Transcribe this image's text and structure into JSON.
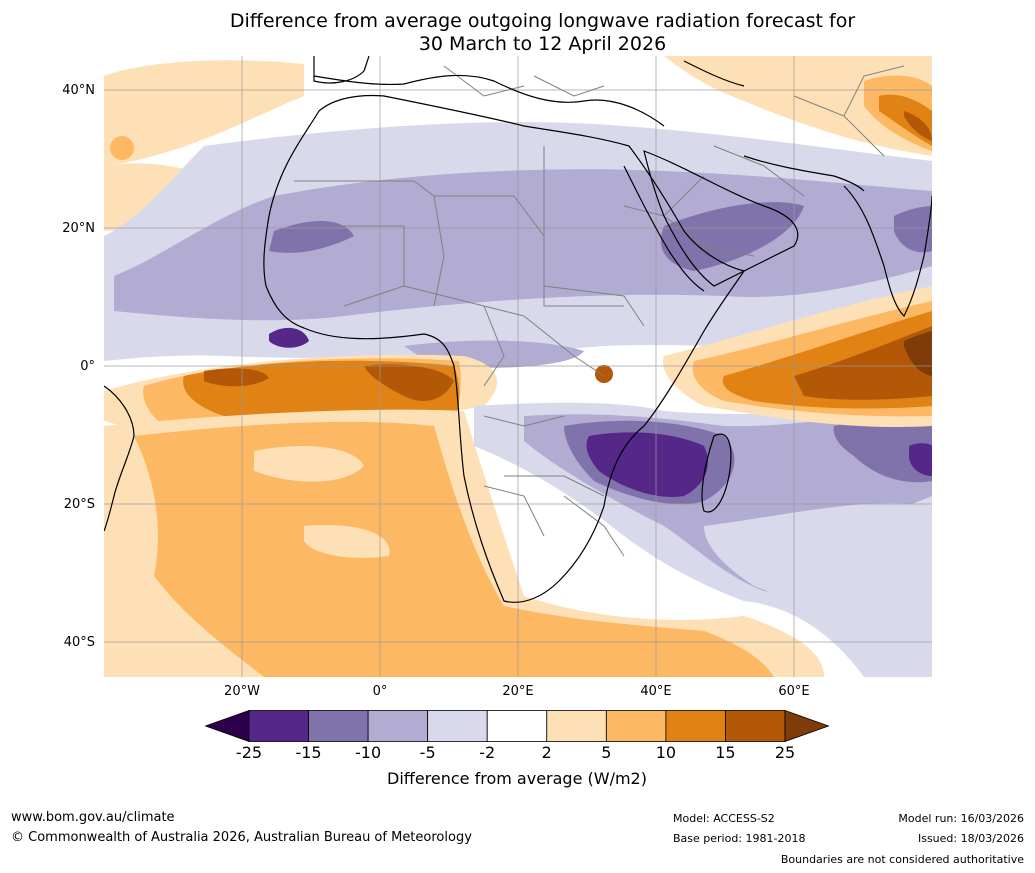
{
  "title": {
    "line1": "Difference from average outgoing longwave radiation forecast for",
    "line2": "30 March to 12 April 2026"
  },
  "map": {
    "lat_labels": [
      "40°N",
      "20°N",
      "0°",
      "20°S",
      "40°S"
    ],
    "lon_labels": [
      "20°W",
      "0°",
      "20°E",
      "40°E",
      "60°E"
    ],
    "colors": {
      "very_strong_negative": "#3a0f5c",
      "strong_negative": "#542788",
      "moderate_negative": "#8073ac",
      "weak_negative": "#b2abd2",
      "slight_negative": "#d8daeb",
      "neutral": "#ffffff",
      "slight_positive": "#fee0b6",
      "weak_positive": "#fdb863",
      "moderate_positive": "#e08214",
      "strong_positive": "#b35806",
      "very_strong_positive": "#7f3b08"
    }
  },
  "colorbar": {
    "title": "Difference from average (W/m2)",
    "ticks": [
      "-25",
      "-15",
      "-10",
      "-5",
      "-2",
      "2",
      "5",
      "10",
      "15",
      "25"
    ],
    "colors": [
      "#542788",
      "#8073ac",
      "#b2abd2",
      "#d8daeb",
      "#ffffff",
      "#fee0b6",
      "#fdb863",
      "#e08214",
      "#b35806"
    ],
    "under_color": "#2d004b",
    "over_color": "#7f3b08"
  },
  "footer": {
    "website": "www.bom.gov.au/climate",
    "copyright": "© Commonwealth of Australia 2026, Australian Bureau of Meteorology",
    "model": "Model: ACCESS-S2",
    "base_period": "Base period: 1981-2018",
    "model_run": "Model run: 16/03/2026",
    "issued": "Issued: 18/03/2026",
    "disclaimer": "Boundaries are not considered authoritative"
  }
}
